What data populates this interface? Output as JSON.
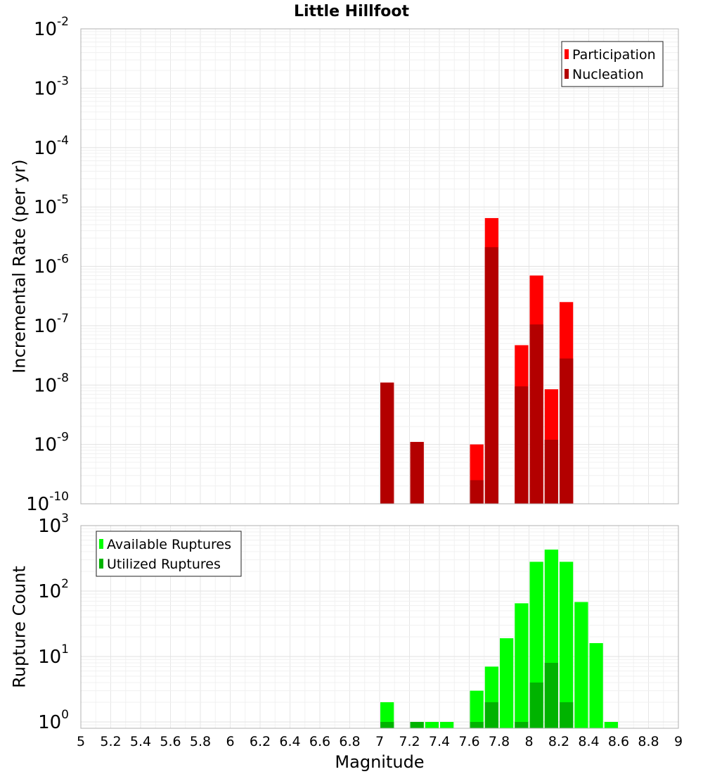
{
  "chart_data": {
    "type": "bar",
    "title": "Little Hillfoot",
    "xlabel": "Magnitude",
    "xlim": [
      5,
      9
    ],
    "x_ticks": [
      "5",
      "5.2",
      "5.4",
      "5.6",
      "5.8",
      "6",
      "6.2",
      "6.4",
      "6.6",
      "6.8",
      "7",
      "7.2",
      "7.4",
      "7.6",
      "7.8",
      "8",
      "8.2",
      "8.4",
      "8.6",
      "8.8",
      "9"
    ],
    "bin_width": 0.1,
    "grid": true,
    "panels": [
      {
        "ylabel": "Incremental Rate (per yr)",
        "yscale": "log",
        "ylim": [
          1e-10,
          0.01
        ],
        "y_tick_exponents": [
          "-10",
          "-9",
          "-8",
          "-7",
          "-6",
          "-5",
          "-4",
          "-3",
          "-2"
        ],
        "legend": {
          "position": "top-right",
          "entries": [
            "Participation",
            "Nucleation"
          ]
        },
        "series": [
          {
            "name": "Participation",
            "color": "#ff0000",
            "points": [
              {
                "x": 7.05,
                "y": 1.1e-08
              },
              {
                "x": 7.25,
                "y": 1.1e-09
              },
              {
                "x": 7.65,
                "y": 1e-09
              },
              {
                "x": 7.75,
                "y": 6.5e-06
              },
              {
                "x": 7.95,
                "y": 4.7e-08
              },
              {
                "x": 8.05,
                "y": 7e-07
              },
              {
                "x": 8.15,
                "y": 8.5e-09
              },
              {
                "x": 8.25,
                "y": 2.5e-07
              }
            ]
          },
          {
            "name": "Nucleation",
            "color": "#b30000",
            "points": [
              {
                "x": 7.05,
                "y": 1.1e-08
              },
              {
                "x": 7.25,
                "y": 1.1e-09
              },
              {
                "x": 7.65,
                "y": 2.5e-10
              },
              {
                "x": 7.75,
                "y": 2.1e-06
              },
              {
                "x": 7.95,
                "y": 9.5e-09
              },
              {
                "x": 8.05,
                "y": 1.05e-07
              },
              {
                "x": 8.15,
                "y": 1.2e-09
              },
              {
                "x": 8.25,
                "y": 2.8e-08
              }
            ]
          }
        ]
      },
      {
        "ylabel": "Rupture Count",
        "yscale": "log",
        "ylim": [
          0.8,
          1000
        ],
        "y_tick_exponents": [
          "0",
          "1",
          "2",
          "3"
        ],
        "legend": {
          "position": "top-left",
          "entries": [
            "Available Ruptures",
            "Utilized Ruptures"
          ]
        },
        "series": [
          {
            "name": "Available Ruptures",
            "color": "#00ff00",
            "points": [
              {
                "x": 7.05,
                "y": 2
              },
              {
                "x": 7.25,
                "y": 1
              },
              {
                "x": 7.35,
                "y": 1
              },
              {
                "x": 7.45,
                "y": 1
              },
              {
                "x": 7.65,
                "y": 3
              },
              {
                "x": 7.75,
                "y": 7
              },
              {
                "x": 7.85,
                "y": 19
              },
              {
                "x": 7.95,
                "y": 65
              },
              {
                "x": 8.05,
                "y": 280
              },
              {
                "x": 8.15,
                "y": 430
              },
              {
                "x": 8.25,
                "y": 280
              },
              {
                "x": 8.35,
                "y": 68
              },
              {
                "x": 8.45,
                "y": 16
              },
              {
                "x": 8.55,
                "y": 1
              }
            ]
          },
          {
            "name": "Utilized Ruptures",
            "color": "#00b300",
            "points": [
              {
                "x": 7.05,
                "y": 1
              },
              {
                "x": 7.25,
                "y": 1
              },
              {
                "x": 7.65,
                "y": 1
              },
              {
                "x": 7.75,
                "y": 2
              },
              {
                "x": 7.95,
                "y": 1
              },
              {
                "x": 8.05,
                "y": 4
              },
              {
                "x": 8.15,
                "y": 8
              },
              {
                "x": 8.25,
                "y": 2
              }
            ]
          }
        ]
      }
    ]
  }
}
